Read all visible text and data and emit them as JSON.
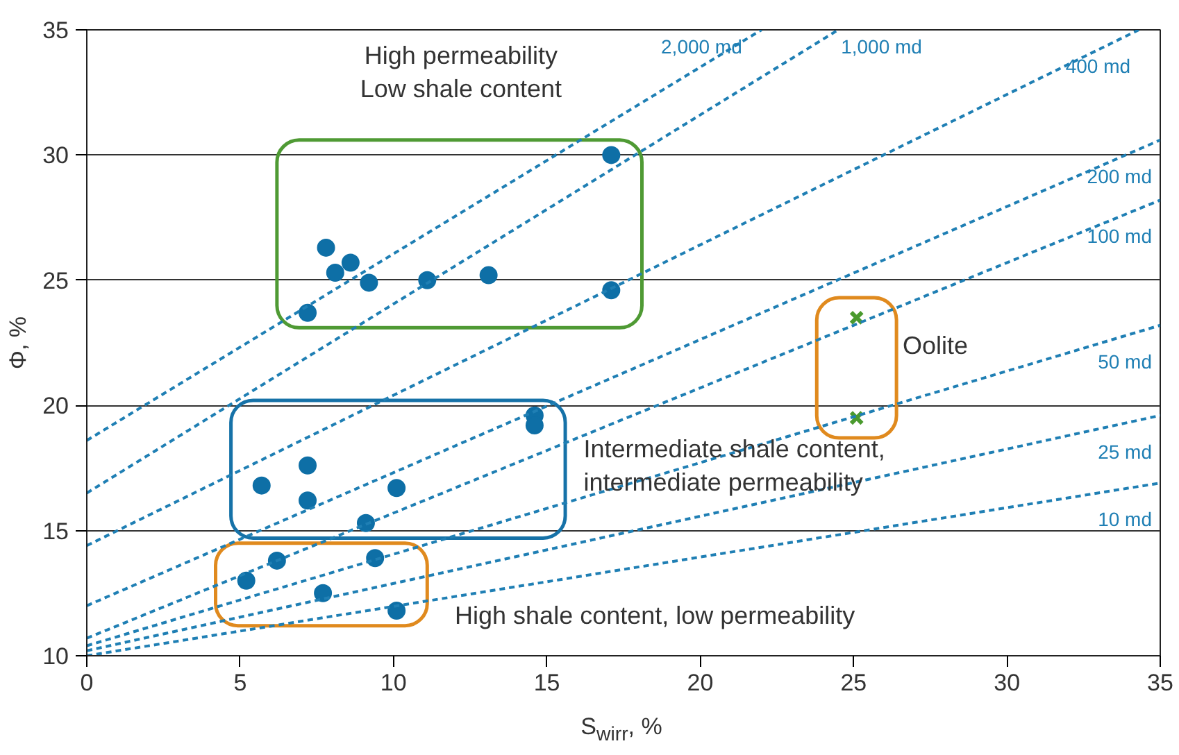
{
  "chart_data": {
    "type": "scatter",
    "xlabel": "S$_{wirr}$, %",
    "ylabel": "Φ, %",
    "xlim": [
      0,
      35
    ],
    "ylim": [
      10,
      35
    ],
    "xticks": [
      0,
      5,
      10,
      15,
      20,
      25,
      30,
      35
    ],
    "yticks": [
      10,
      15,
      20,
      25,
      30,
      35
    ],
    "grid": "y",
    "marker": "circle",
    "series": [
      {
        "color": "#0e6fa6",
        "x": [
          7.2,
          7.8,
          8.1,
          8.6,
          9.2,
          11.1,
          13.1,
          17.1,
          17.1
        ],
        "values": [
          23.7,
          26.3,
          25.3,
          25.7,
          24.9,
          25.0,
          25.2,
          30.0,
          24.6
        ]
      },
      {
        "color": "#0e6fa6",
        "x": [
          5.7,
          7.2,
          7.2,
          10.1,
          9.1,
          14.6,
          14.6
        ],
        "values": [
          16.8,
          17.6,
          16.2,
          16.7,
          15.3,
          19.6,
          19.2
        ]
      },
      {
        "color": "#0e6fa6",
        "x": [
          5.2,
          6.2,
          7.7,
          9.4,
          10.1
        ],
        "values": [
          13.0,
          13.8,
          12.5,
          13.9,
          11.8
        ]
      },
      {
        "color": "#4a9a2e",
        "marker": "cross",
        "x": [
          25.1,
          25.1
        ],
        "values": [
          23.5,
          19.5
        ]
      },
      {
        "type": "line",
        "marker": "none",
        "line_style": "dashed",
        "color": "#1f7fb4",
        "name": "2,000 md",
        "x": [
          0,
          22.0
        ],
        "values": [
          18.6,
          35
        ]
      },
      {
        "type": "line",
        "marker": "none",
        "line_style": "dashed",
        "color": "#1f7fb4",
        "name": "1,000 md",
        "x": [
          0,
          24.5
        ],
        "values": [
          16.5,
          35
        ]
      },
      {
        "type": "line",
        "marker": "none",
        "line_style": "dashed",
        "color": "#1f7fb4",
        "name": "400 md",
        "x": [
          0,
          34.3
        ],
        "values": [
          14.4,
          35
        ]
      },
      {
        "type": "line",
        "marker": "none",
        "line_style": "dashed",
        "color": "#1f7fb4",
        "name": "200 md",
        "x": [
          0,
          35
        ],
        "values": [
          12.0,
          30.6
        ]
      },
      {
        "type": "line",
        "marker": "none",
        "line_style": "dashed",
        "color": "#1f7fb4",
        "name": "100 md",
        "x": [
          0,
          35
        ],
        "values": [
          10.7,
          28.2
        ]
      },
      {
        "type": "line",
        "marker": "none",
        "line_style": "dashed",
        "color": "#1f7fb4",
        "name": "50 md",
        "x": [
          0,
          35
        ],
        "values": [
          10.4,
          23.2
        ]
      },
      {
        "type": "line",
        "marker": "none",
        "line_style": "dashed",
        "color": "#1f7fb4",
        "name": "25 md",
        "x": [
          0,
          35
        ],
        "values": [
          10.2,
          19.6
        ]
      },
      {
        "type": "line",
        "marker": "none",
        "line_style": "dashed",
        "color": "#1f7fb4",
        "name": "10 md",
        "x": [
          0,
          35
        ],
        "values": [
          10.0,
          16.9
        ]
      }
    ],
    "annotations": [
      "High permeability\nLow shale content",
      "Oolite",
      "Intermediate shale content,\nintermediate permeability",
      "High shale content, low permeability"
    ]
  }
}
